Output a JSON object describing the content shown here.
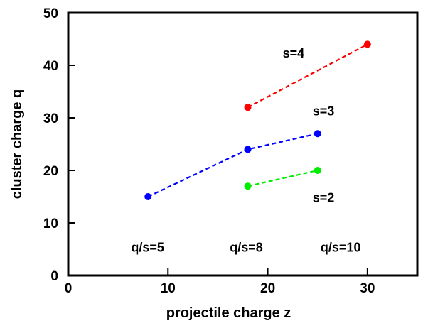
{
  "chart_data": {
    "type": "line",
    "xlabel": "projectile charge z",
    "ylabel": "cluster charge q",
    "xlim": [
      0,
      35
    ],
    "ylim": [
      0,
      50
    ],
    "xticks": [
      0,
      10,
      20,
      30
    ],
    "yticks": [
      0,
      10,
      20,
      30,
      40,
      50
    ],
    "grid": false,
    "series": [
      {
        "name": "s=4",
        "color": "#ff0000",
        "x": [
          18,
          30
        ],
        "y": [
          32,
          44
        ]
      },
      {
        "name": "s=3",
        "color": "#0000ff",
        "x": [
          8,
          18,
          25
        ],
        "y": [
          15,
          24,
          27
        ]
      },
      {
        "name": "s=2",
        "color": "#00ee00",
        "x": [
          18,
          25
        ],
        "y": [
          17,
          20
        ]
      }
    ],
    "annotations": [
      {
        "text": "s=4",
        "x": 21.5,
        "y": 41.5
      },
      {
        "text": "s=3",
        "x": 24.5,
        "y": 30.5
      },
      {
        "text": "s=2",
        "x": 24.5,
        "y": 14.0
      },
      {
        "text": "q/s=5",
        "x": 6.3,
        "y": 4.5
      },
      {
        "text": "q/s=8",
        "x": 16.2,
        "y": 4.5
      },
      {
        "text": "q/s=10",
        "x": 25.3,
        "y": 4.5
      }
    ]
  }
}
